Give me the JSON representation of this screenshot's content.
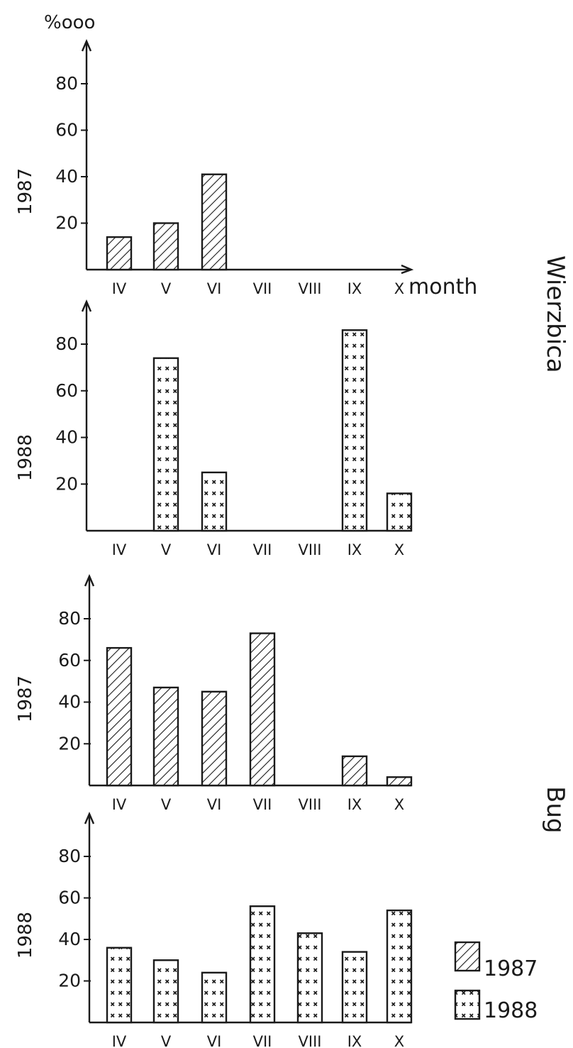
{
  "chart_data": [
    {
      "type": "bar",
      "panel": "wierzbica-1987",
      "year_label": "1987",
      "pattern": "hatch",
      "unit_label": "%ooo",
      "axis_title": "month",
      "categories": [
        "IV",
        "V",
        "VI",
        "VII",
        "VIII",
        "IX",
        "X"
      ],
      "values": [
        14,
        20,
        41,
        0,
        0,
        0,
        0
      ],
      "yticks": [
        20,
        40,
        60,
        80
      ],
      "ylim": [
        0,
        95
      ]
    },
    {
      "type": "bar",
      "panel": "wierzbica-1988",
      "year_label": "1988",
      "pattern": "cross",
      "categories": [
        "IV",
        "V",
        "VI",
        "VII",
        "VIII",
        "IX",
        "X"
      ],
      "values": [
        0,
        74,
        25,
        0,
        0,
        86,
        16
      ],
      "yticks": [
        20,
        40,
        60,
        80
      ],
      "ylim": [
        0,
        95
      ]
    },
    {
      "type": "bar",
      "panel": "bug-1987",
      "year_label": "1987",
      "pattern": "hatch",
      "categories": [
        "IV",
        "V",
        "VI",
        "VII",
        "VIII",
        "IX",
        "X"
      ],
      "values": [
        66,
        47,
        45,
        73,
        0,
        14,
        4
      ],
      "yticks": [
        20,
        40,
        60,
        80
      ],
      "ylim": [
        0,
        95
      ]
    },
    {
      "type": "bar",
      "panel": "bug-1988",
      "year_label": "1988",
      "pattern": "cross",
      "categories": [
        "IV",
        "V",
        "VI",
        "VII",
        "VIII",
        "IX",
        "X"
      ],
      "values": [
        36,
        30,
        24,
        56,
        43,
        34,
        54
      ],
      "yticks": [
        20,
        40,
        60,
        80
      ],
      "ylim": [
        0,
        95
      ]
    }
  ],
  "regions": [
    "Wierzbica",
    "Bug"
  ],
  "legend": [
    {
      "label": "1987",
      "pattern": "hatch"
    },
    {
      "label": "1988",
      "pattern": "cross"
    }
  ]
}
